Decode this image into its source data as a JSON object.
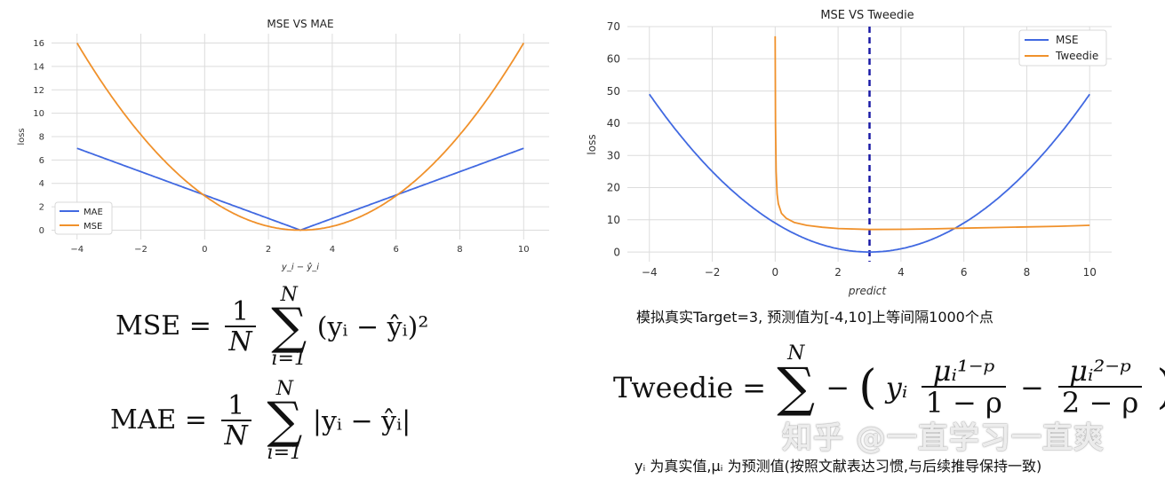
{
  "chart_data": [
    {
      "type": "line",
      "title": "MSE VS MAE",
      "xlabel": "y_i − ŷ_i",
      "ylabel": "loss",
      "xlim": [
        -4.8,
        10.8
      ],
      "ylim": [
        -0.8,
        16.8
      ],
      "xticks": [
        -4,
        -2,
        0,
        2,
        4,
        6,
        8,
        10
      ],
      "yticks": [
        0,
        2,
        4,
        6,
        8,
        10,
        12,
        14,
        16
      ],
      "grid": true,
      "legend": "lower-left",
      "series": [
        {
          "name": "MAE",
          "color": "#4169e1",
          "formula": "abs(x-3)"
        },
        {
          "name": "MSE",
          "color": "#f0912b",
          "formula": "(x-3)^2/3.0625"
        }
      ],
      "x_range": [
        -4,
        10
      ]
    },
    {
      "type": "line",
      "title": "MSE VS Tweedie",
      "xlabel": "predict",
      "ylabel": "loss",
      "xlim": [
        -4.7,
        10.7
      ],
      "ylim": [
        -3,
        70
      ],
      "xticks": [
        -4,
        -2,
        0,
        2,
        4,
        6,
        8,
        10
      ],
      "yticks": [
        0,
        10,
        20,
        30,
        40,
        50,
        60,
        70
      ],
      "grid": true,
      "legend": "upper-right",
      "vline": {
        "x": 3,
        "color": "#1a1aa6",
        "style": "dashed"
      },
      "series": [
        {
          "name": "MSE",
          "color": "#4169e1",
          "formula": "(x-3)^2"
        },
        {
          "name": "Tweedie",
          "color": "#f0912b",
          "formula": "tweedie",
          "points": [
            [
              0.0,
              67
            ],
            [
              0.01,
              40
            ],
            [
              0.03,
              25
            ],
            [
              0.06,
              18
            ],
            [
              0.1,
              15
            ],
            [
              0.2,
              12
            ],
            [
              0.35,
              10.5
            ],
            [
              0.6,
              9.2
            ],
            [
              1.0,
              8.3
            ],
            [
              1.5,
              7.7
            ],
            [
              2.0,
              7.3
            ],
            [
              3.0,
              7.0
            ],
            [
              4.0,
              7.05
            ],
            [
              5.0,
              7.2
            ],
            [
              6.0,
              7.4
            ],
            [
              7.0,
              7.6
            ],
            [
              8.0,
              7.8
            ],
            [
              9.0,
              8.0
            ],
            [
              10.0,
              8.3
            ]
          ]
        }
      ],
      "x_range": [
        -4,
        10
      ]
    }
  ],
  "formulas": {
    "mse_label": "MSE",
    "mae_label": "MAE",
    "tweedie_label": "Tweedie",
    "equals": "=",
    "one": "1",
    "N": "N",
    "sum_top": "N",
    "sum_bottom": "i=1",
    "mse_body": "(yᵢ − ŷᵢ)²",
    "mae_body": "|yᵢ − ŷᵢ|",
    "tweedie_minus": "−",
    "tweedie_y": "yᵢ",
    "tweedie_num1": "μᵢ¹⁻ᵖ",
    "tweedie_den1": "1 − ρ",
    "tweedie_num2": "μᵢ²⁻ᵖ",
    "tweedie_den2": "2 − ρ"
  },
  "captions": {
    "simulation": "模拟真实Target=3, 预测值为[-4,10]上等间隔1000个点",
    "notation": "yᵢ 为真实值,μᵢ 为预测值(按照文献表达习惯,与后续推导保持一致)"
  },
  "watermark": "知乎 @一直学习一直爽"
}
